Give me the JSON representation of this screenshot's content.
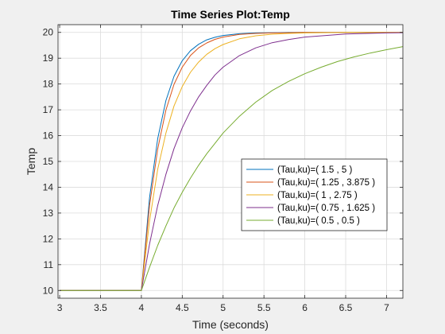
{
  "chart_data": {
    "type": "line",
    "title": "Time Series Plot:Temp",
    "xlabel": "Time (seconds)",
    "ylabel": "Temp",
    "xlim": [
      2.98,
      7.2
    ],
    "ylim": [
      9.7,
      20.3
    ],
    "xticks": [
      "3",
      "3.5",
      "4",
      "4.5",
      "5",
      "5.5",
      "6",
      "6.5",
      "7"
    ],
    "yticks": [
      "10",
      "11",
      "12",
      "13",
      "14",
      "15",
      "16",
      "17",
      "18",
      "19",
      "20"
    ],
    "grid": true,
    "legend_position": "center-right",
    "series": [
      {
        "name": "(Tau,ku)=( 1.5 , 5 )",
        "color": "#0072BD",
        "x": [
          3.0,
          4.0,
          4.1,
          4.2,
          4.3,
          4.4,
          4.5,
          4.6,
          4.7,
          4.8,
          4.9,
          5.0,
          5.2,
          5.4,
          5.6,
          5.8,
          6.0,
          6.5,
          7.0,
          7.2
        ],
        "y": [
          10.0,
          10.0,
          13.6,
          15.89,
          17.36,
          18.3,
          18.9,
          19.29,
          19.54,
          19.71,
          19.81,
          19.88,
          19.95,
          19.98,
          19.99,
          20.0,
          20.0,
          20.0,
          20.0,
          20.0
        ]
      },
      {
        "name": "(Tau,ku)=( 1.25 , 3.875 )",
        "color": "#D95319",
        "x": [
          3.0,
          4.0,
          4.1,
          4.2,
          4.3,
          4.4,
          4.5,
          4.6,
          4.7,
          4.8,
          4.9,
          5.0,
          5.2,
          5.4,
          5.6,
          5.8,
          6.0,
          6.5,
          7.0,
          7.2
        ],
        "y": [
          10.0,
          10.0,
          13.3,
          15.49,
          16.99,
          17.99,
          18.65,
          19.1,
          19.4,
          19.59,
          19.73,
          19.82,
          19.92,
          19.96,
          19.98,
          19.99,
          20.0,
          20.0,
          20.0,
          20.0
        ]
      },
      {
        "name": "(Tau,ku)=( 1 , 2.75 )",
        "color": "#EDB120",
        "x": [
          3.0,
          4.0,
          4.1,
          4.2,
          4.3,
          4.4,
          4.5,
          4.6,
          4.7,
          4.8,
          4.9,
          5.0,
          5.2,
          5.4,
          5.6,
          5.8,
          6.0,
          6.5,
          7.0,
          7.2
        ],
        "y": [
          10.0,
          10.0,
          12.7,
          14.7,
          16.1,
          17.15,
          17.9,
          18.45,
          18.85,
          19.15,
          19.37,
          19.53,
          19.75,
          19.87,
          19.93,
          19.96,
          19.98,
          20.0,
          20.0,
          20.0
        ]
      },
      {
        "name": "(Tau,ku)=( 0.75 , 1.625 )",
        "color": "#7E2F8E",
        "x": [
          3.0,
          4.0,
          4.1,
          4.2,
          4.3,
          4.4,
          4.5,
          4.6,
          4.7,
          4.8,
          4.9,
          5.0,
          5.2,
          5.4,
          5.6,
          5.8,
          6.0,
          6.5,
          7.0,
          7.2
        ],
        "y": [
          10.0,
          10.0,
          11.8,
          13.3,
          14.5,
          15.5,
          16.3,
          16.95,
          17.5,
          17.95,
          18.35,
          18.65,
          19.1,
          19.4,
          19.6,
          19.72,
          19.82,
          19.94,
          19.98,
          19.99
        ]
      },
      {
        "name": "(Tau,ku)=( 0.5 , 0.5 )",
        "color": "#77AC30",
        "x": [
          3.0,
          4.0,
          4.1,
          4.2,
          4.3,
          4.4,
          4.5,
          4.6,
          4.7,
          4.8,
          4.9,
          5.0,
          5.2,
          5.4,
          5.6,
          5.8,
          6.0,
          6.2,
          6.4,
          6.6,
          6.8,
          7.0,
          7.2
        ],
        "y": [
          10.0,
          10.0,
          10.9,
          11.75,
          12.5,
          13.2,
          13.8,
          14.35,
          14.85,
          15.3,
          15.7,
          16.1,
          16.75,
          17.3,
          17.75,
          18.1,
          18.4,
          18.65,
          18.87,
          19.05,
          19.2,
          19.33,
          19.45
        ]
      }
    ]
  }
}
